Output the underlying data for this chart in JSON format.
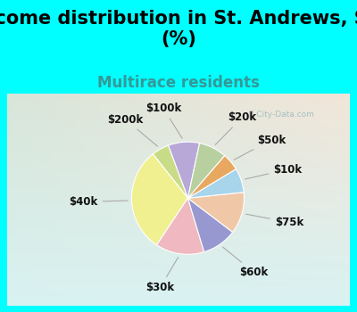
{
  "title": "Income distribution in St. Andrews, SC\n(%)",
  "subtitle": "Multirace residents",
  "watermark": "ⓘ City-Data.com",
  "labels": [
    "$100k",
    "$200k",
    "$40k",
    "$30k",
    "$60k",
    "$75k",
    "$10k",
    "$50k",
    "$20k"
  ],
  "sizes": [
    9,
    5,
    30,
    14,
    10,
    12,
    7,
    5,
    8
  ],
  "colors": [
    "#b8a8d8",
    "#c8dc88",
    "#f0f090",
    "#f0b8c0",
    "#9898d0",
    "#f0c8a8",
    "#a8d4ec",
    "#e8a860",
    "#b8d0a0"
  ],
  "bg_color": "#00FFFF",
  "title_fontsize": 15,
  "subtitle_fontsize": 12,
  "subtitle_color": "#359898",
  "label_fontsize": 8.5,
  "startangle": 78
}
